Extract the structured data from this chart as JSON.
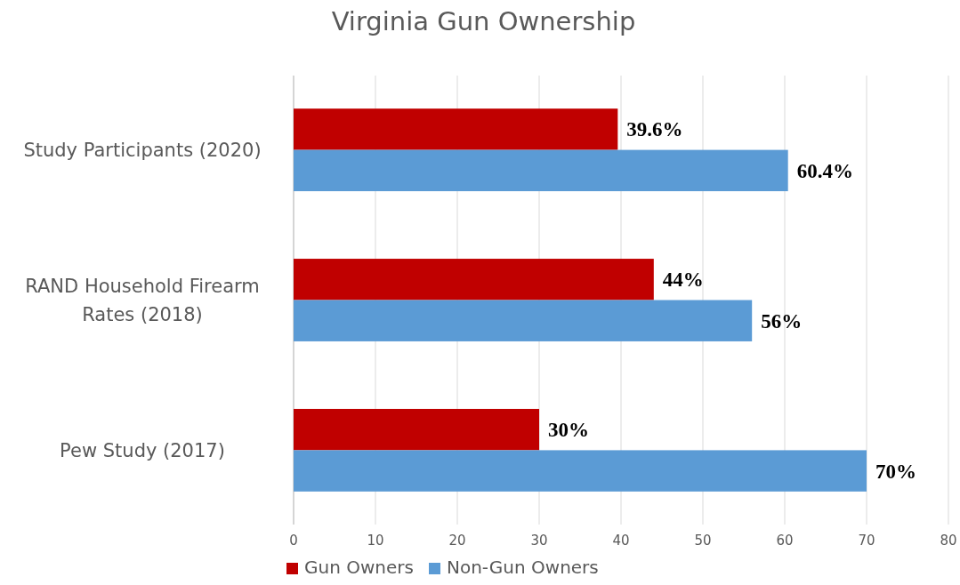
{
  "chart_data": {
    "type": "bar",
    "orientation": "horizontal",
    "title": "Virginia Gun Ownership",
    "categories": [
      "Study Participants (2020)",
      "RAND Household Firearm Rates (2018)",
      "Pew Study (2017)"
    ],
    "series": [
      {
        "name": "Gun Owners",
        "color": "#c00000",
        "values": [
          39.6,
          44,
          30
        ],
        "value_labels": [
          "39.6%",
          "44%",
          "30%"
        ]
      },
      {
        "name": "Non-Gun Owners",
        "color": "#5b9bd5",
        "values": [
          60.4,
          56,
          70
        ],
        "value_labels": [
          "60.4%",
          "56%",
          "70%"
        ]
      }
    ],
    "xlim": [
      0,
      80
    ],
    "xticks": [
      0,
      10,
      20,
      30,
      40,
      50,
      60,
      70,
      80
    ],
    "grid": "x",
    "legend": "bottom left"
  }
}
